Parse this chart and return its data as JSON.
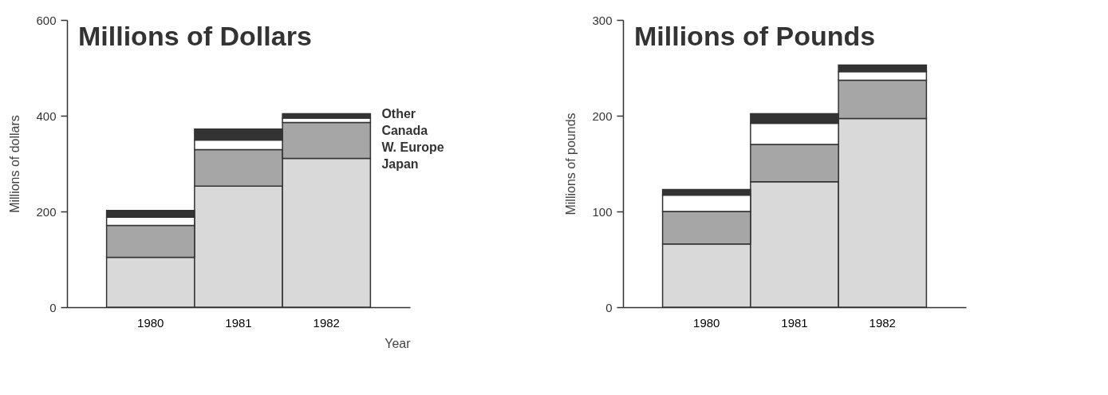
{
  "chart_data": [
    {
      "type": "bar",
      "title": "Millions of Dollars",
      "xlabel": "Year",
      "ylabel": "Millions of dollars",
      "stacked": true,
      "categories": [
        "1980",
        "1981",
        "1982"
      ],
      "series": [
        {
          "name": "Japan",
          "color": "#d9d9d9",
          "values": [
            104,
            253,
            311
          ]
        },
        {
          "name": "W. Europe",
          "color": "#a6a6a6",
          "values": [
            67,
            76,
            75
          ]
        },
        {
          "name": "Canada",
          "color": "#ffffff",
          "values": [
            17,
            20,
            9
          ]
        },
        {
          "name": "Other",
          "color": "#333333",
          "values": [
            14,
            23,
            9
          ]
        }
      ],
      "ylim": [
        0,
        600
      ],
      "yticks": [
        0,
        200,
        400,
        600
      ],
      "grid": false
    },
    {
      "type": "bar",
      "title": "Millions of Pounds",
      "ylabel": "Millions of pounds",
      "stacked": true,
      "categories": [
        "1980",
        "1981",
        "1982"
      ],
      "series": [
        {
          "color": "#d9d9d9",
          "values": [
            66,
            131,
            197
          ]
        },
        {
          "color": "#a6a6a6",
          "values": [
            34,
            39,
            40
          ]
        },
        {
          "color": "#ffffff",
          "values": [
            17,
            22,
            9
          ]
        },
        {
          "color": "#333333",
          "values": [
            6,
            10,
            7
          ]
        }
      ],
      "ylim": [
        0,
        300
      ],
      "yticks": [
        0,
        100,
        200,
        300
      ],
      "grid": false
    }
  ]
}
